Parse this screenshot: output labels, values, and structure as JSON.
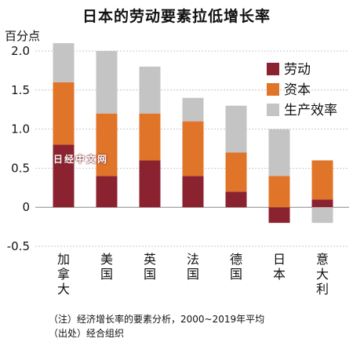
{
  "chart_data": {
    "type": "bar",
    "stacked": true,
    "title": "日本的劳动要素拉低增长率",
    "ylabel": "百分点",
    "ylim": [
      -0.5,
      2.0
    ],
    "yticks": [
      "2.0",
      "1.5",
      "1.0",
      "0.5",
      "0",
      "-0.5"
    ],
    "categories": [
      "加拿大",
      "美国",
      "英国",
      "法国",
      "德国",
      "日本",
      "意大利"
    ],
    "series": [
      {
        "name": "劳动",
        "color": "#8b2230",
        "values": [
          0.8,
          0.4,
          0.6,
          0.4,
          0.2,
          -0.2,
          0.1
        ]
      },
      {
        "name": "资本",
        "color": "#e07428",
        "values": [
          0.8,
          0.8,
          0.6,
          0.7,
          0.5,
          0.4,
          0.5
        ]
      },
      {
        "name": "生产效率",
        "color": "#c4c4c4",
        "values": [
          0.5,
          0.8,
          0.6,
          0.3,
          0.6,
          0.6,
          -0.2
        ]
      }
    ],
    "legend_position": "right"
  },
  "watermark": "日经中文网",
  "notes": {
    "line1": "（注）经济增长率的要素分析，2000~2019年平均",
    "line2": "（出处）经合组织"
  }
}
